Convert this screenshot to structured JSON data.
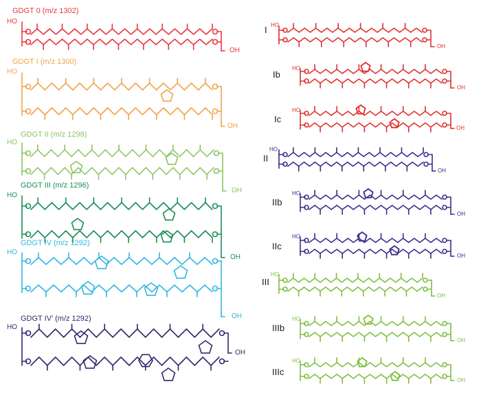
{
  "left_labels": [
    "GDGT 0 (m/z 1302)",
    "GDGT I (m/z 1300)",
    "GDGT II (m/z 1298)",
    "GDGT III (m/z 1296)",
    "GDGT IV (m/z 1292)",
    "GDGT IV’ (m/z 1292)"
  ],
  "right_labels": [
    "I",
    "Ib",
    "Ic",
    "II",
    "IIb",
    "IIc",
    "III",
    "IIIb",
    "IIIc"
  ],
  "chem": {
    "ho": "HO",
    "oh": "OH",
    "o": "O"
  },
  "colors": {
    "gdgt0": "#e8373d",
    "gdgt1": "#f0a448",
    "gdgt2": "#8cc460",
    "gdgt3": "#1b8c58",
    "gdgt4": "#31b6e2",
    "gdgt4p": "#2e2a6c",
    "red": "#e02f2c",
    "purple": "#3a2a8a",
    "green": "#7cbf40"
  }
}
